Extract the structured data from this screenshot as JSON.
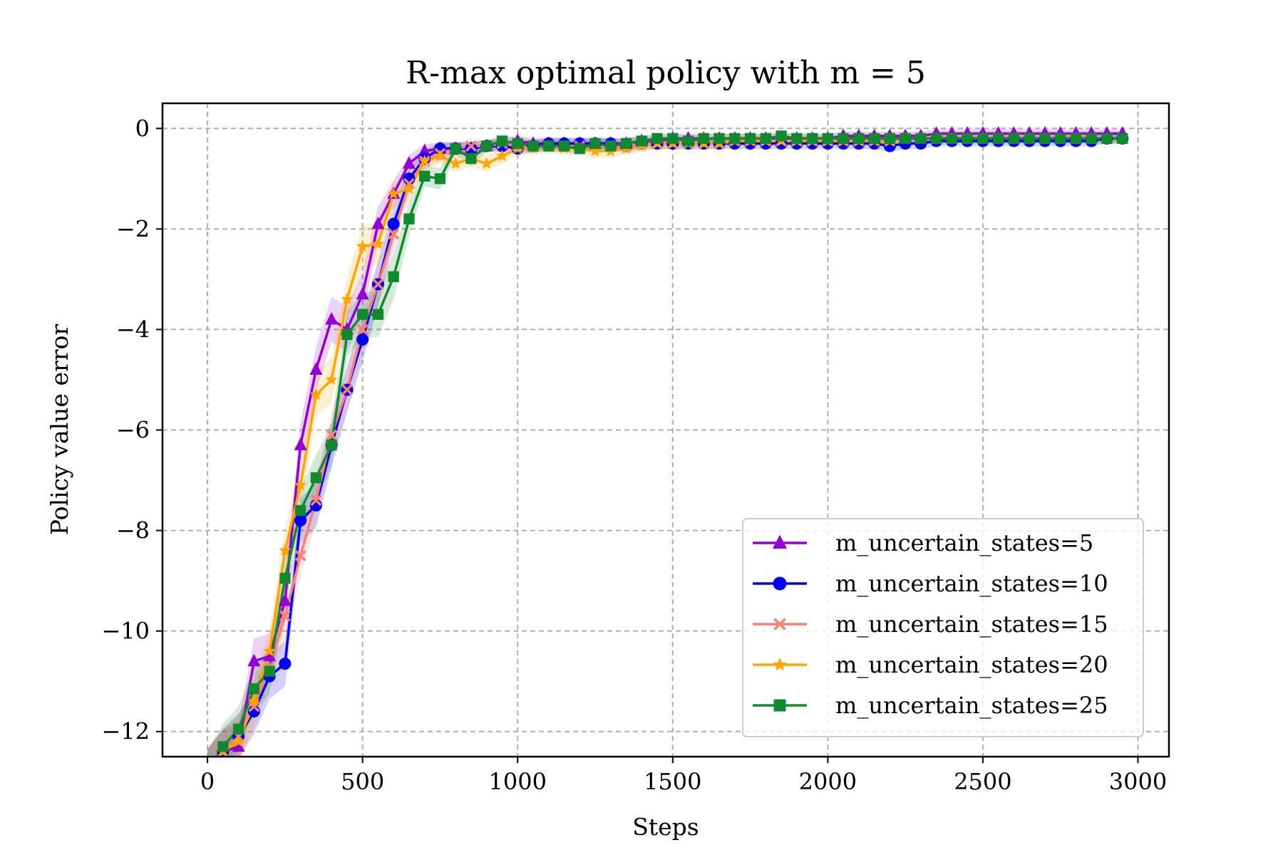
{
  "chart_data": {
    "type": "line",
    "title": "R-max optimal policy with m = 5",
    "xlabel": "Steps",
    "ylabel": "Policy value error",
    "xlim": [
      -145,
      3100
    ],
    "ylim": [
      -12.5,
      0.5
    ],
    "xticks": [
      0,
      500,
      1000,
      1500,
      2000,
      2500,
      3000
    ],
    "xtick_labels": [
      "0",
      "500",
      "1000",
      "1500",
      "2000",
      "2500",
      "3000"
    ],
    "yticks": [
      0,
      -2,
      -4,
      -6,
      -8,
      -10,
      -12
    ],
    "ytick_labels": [
      "0",
      "−2",
      "−4",
      "−6",
      "−8",
      "−10",
      "−12"
    ],
    "grid": true,
    "legend_position": "lower-right",
    "x": [
      0,
      50,
      100,
      150,
      200,
      250,
      300,
      350,
      400,
      450,
      500,
      550,
      600,
      650,
      700,
      750,
      800,
      850,
      900,
      950,
      1000,
      1050,
      1100,
      1150,
      1200,
      1250,
      1300,
      1350,
      1400,
      1450,
      1500,
      1550,
      1600,
      1650,
      1700,
      1750,
      1800,
      1850,
      1900,
      1950,
      2000,
      2050,
      2100,
      2150,
      2200,
      2250,
      2300,
      2350,
      2400,
      2450,
      2500,
      2550,
      2600,
      2650,
      2700,
      2750,
      2800,
      2850,
      2900,
      2950
    ],
    "series": [
      {
        "name": "m_uncertain_states=5",
        "color": "#9400D3",
        "marker": "triangle",
        "values": [
          -12.8,
          -12.4,
          -12.3,
          -10.6,
          -10.5,
          -9.4,
          -6.3,
          -4.8,
          -3.8,
          -4.0,
          -3.3,
          -1.9,
          -1.3,
          -0.7,
          -0.45,
          -0.4,
          -0.4,
          -0.4,
          -0.35,
          -0.3,
          -0.25,
          -0.3,
          -0.3,
          -0.3,
          -0.3,
          -0.3,
          -0.3,
          -0.3,
          -0.25,
          -0.25,
          -0.2,
          -0.2,
          -0.2,
          -0.2,
          -0.2,
          -0.2,
          -0.2,
          -0.2,
          -0.2,
          -0.2,
          -0.2,
          -0.15,
          -0.15,
          -0.15,
          -0.15,
          -0.15,
          -0.15,
          -0.1,
          -0.1,
          -0.1,
          -0.1,
          -0.1,
          -0.1,
          -0.1,
          -0.1,
          -0.1,
          -0.1,
          -0.1,
          -0.1,
          -0.1
        ],
        "band": 0.45
      },
      {
        "name": "m_uncertain_states=10",
        "color": "#0000EE",
        "marker": "circle",
        "values": [
          -12.8,
          -12.4,
          -12.1,
          -11.6,
          -10.9,
          -10.65,
          -7.8,
          -7.5,
          -6.3,
          -5.2,
          -4.2,
          -3.1,
          -1.9,
          -1.0,
          -0.6,
          -0.4,
          -0.4,
          -0.4,
          -0.35,
          -0.35,
          -0.4,
          -0.35,
          -0.3,
          -0.3,
          -0.3,
          -0.3,
          -0.3,
          -0.35,
          -0.3,
          -0.3,
          -0.3,
          -0.3,
          -0.3,
          -0.3,
          -0.3,
          -0.3,
          -0.3,
          -0.3,
          -0.3,
          -0.3,
          -0.3,
          -0.3,
          -0.3,
          -0.3,
          -0.35,
          -0.3,
          -0.3,
          -0.25,
          -0.25,
          -0.25,
          -0.25,
          -0.25,
          -0.25,
          -0.25,
          -0.25,
          -0.25,
          -0.25,
          -0.25,
          -0.2,
          -0.2
        ],
        "band": 0.45
      },
      {
        "name": "m_uncertain_states=15",
        "color": "#FA8072",
        "marker": "x",
        "values": [
          -12.8,
          -12.4,
          -12.1,
          -11.5,
          -10.7,
          -9.7,
          -8.5,
          -7.4,
          -6.1,
          -5.2,
          -4.0,
          -3.1,
          -2.1,
          -1.1,
          -0.65,
          -0.5,
          -0.4,
          -0.35,
          -0.35,
          -0.3,
          -0.35,
          -0.35,
          -0.35,
          -0.35,
          -0.35,
          -0.35,
          -0.35,
          -0.35,
          -0.3,
          -0.3,
          -0.3,
          -0.3,
          -0.3,
          -0.3,
          -0.25,
          -0.25,
          -0.25,
          -0.25,
          -0.25,
          -0.25,
          -0.25,
          -0.25,
          -0.25,
          -0.25,
          -0.25,
          -0.2,
          -0.2,
          -0.2,
          -0.2,
          -0.2,
          -0.2,
          -0.2,
          -0.2,
          -0.2,
          -0.2,
          -0.2,
          -0.2,
          -0.2,
          -0.2,
          -0.2
        ],
        "band": 0.45
      },
      {
        "name": "m_uncertain_states=20",
        "color": "#FFA500",
        "marker": "star",
        "values": [
          -12.8,
          -12.4,
          -12.2,
          -11.4,
          -10.4,
          -8.4,
          -7.1,
          -5.3,
          -5.0,
          -3.4,
          -2.35,
          -2.3,
          -1.3,
          -1.2,
          -0.65,
          -0.55,
          -0.7,
          -0.6,
          -0.7,
          -0.55,
          -0.4,
          -0.4,
          -0.35,
          -0.4,
          -0.4,
          -0.45,
          -0.45,
          -0.4,
          -0.35,
          -0.3,
          -0.3,
          -0.3,
          -0.3,
          -0.3,
          -0.25,
          -0.25,
          -0.25,
          -0.25,
          -0.25,
          -0.25,
          -0.25,
          -0.25,
          -0.25,
          -0.25,
          -0.25,
          -0.2,
          -0.2,
          -0.2,
          -0.2,
          -0.2,
          -0.2,
          -0.2,
          -0.2,
          -0.2,
          -0.2,
          -0.2,
          -0.2,
          -0.2,
          -0.2,
          -0.2
        ],
        "band": 0.45
      },
      {
        "name": "m_uncertain_states=25",
        "color": "#12892F",
        "marker": "square",
        "values": [
          -12.8,
          -12.3,
          -11.95,
          -11.15,
          -10.8,
          -8.95,
          -7.6,
          -6.95,
          -6.3,
          -4.1,
          -3.7,
          -3.7,
          -2.95,
          -1.8,
          -0.95,
          -1.0,
          -0.4,
          -0.6,
          -0.35,
          -0.25,
          -0.3,
          -0.35,
          -0.35,
          -0.35,
          -0.4,
          -0.3,
          -0.35,
          -0.3,
          -0.25,
          -0.2,
          -0.2,
          -0.25,
          -0.2,
          -0.2,
          -0.2,
          -0.2,
          -0.2,
          -0.15,
          -0.2,
          -0.2,
          -0.2,
          -0.2,
          -0.2,
          -0.2,
          -0.2,
          -0.2,
          -0.2,
          -0.2,
          -0.2,
          -0.2,
          -0.2,
          -0.2,
          -0.2,
          -0.2,
          -0.2,
          -0.2,
          -0.2,
          -0.2,
          -0.2,
          -0.2
        ],
        "band": 0.45
      }
    ]
  }
}
